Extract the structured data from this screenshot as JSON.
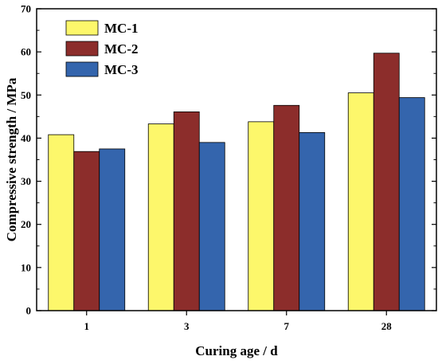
{
  "chart_data": {
    "type": "bar",
    "categories": [
      "1",
      "3",
      "7",
      "28"
    ],
    "series": [
      {
        "name": "MC-1",
        "values": [
          40.8,
          43.3,
          43.8,
          50.5
        ]
      },
      {
        "name": "MC-2",
        "values": [
          36.9,
          46.1,
          47.6,
          59.7
        ]
      },
      {
        "name": "MC-3",
        "values": [
          37.5,
          39.0,
          41.3,
          49.4
        ]
      }
    ],
    "colors": [
      "#fdf76b",
      "#8c2d2b",
      "#3465ad"
    ],
    "xlabel": "Curing age / d",
    "ylabel": "Compressive strength / MPa",
    "ylim": [
      0,
      70
    ],
    "yticks": [
      0,
      10,
      20,
      30,
      40,
      50,
      60,
      70
    ],
    "grid": false,
    "legend_position": "top-left"
  }
}
